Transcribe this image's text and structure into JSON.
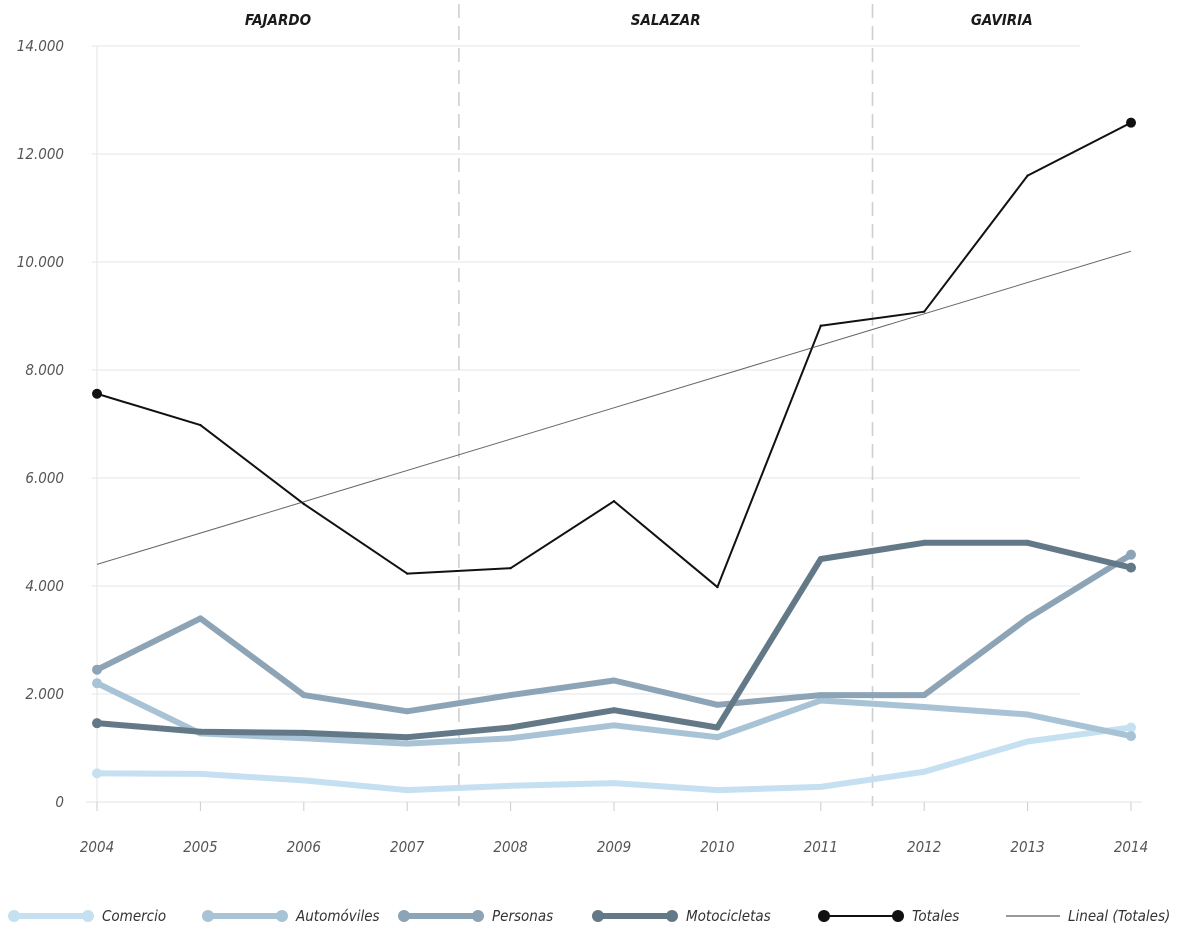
{
  "chart_data": {
    "type": "line",
    "x": [
      "2004",
      "2005",
      "2006",
      "2007",
      "2008",
      "2009",
      "2010",
      "2011",
      "2012",
      "2013",
      "2014"
    ],
    "y_ticks": [
      "0",
      "2.000",
      "4.000",
      "6.000",
      "8.000",
      "10.000",
      "12.000",
      "14.000"
    ],
    "ylim": [
      0,
      14000
    ],
    "grid": true,
    "legend_position": "bottom",
    "periods": [
      {
        "label": "FAJARDO",
        "from": 2004,
        "to": 2007.5
      },
      {
        "label": "SALAZAR",
        "from": 2007.5,
        "to": 2011.5
      },
      {
        "label": "GAVIRIA",
        "from": 2011.5,
        "to": 2014
      }
    ],
    "period_separators": [
      2007.5,
      2011.5
    ],
    "series": [
      {
        "name": "Comercio",
        "color": "#c5e0f0",
        "style": "thick",
        "values": [
          530,
          520,
          400,
          220,
          300,
          350,
          220,
          280,
          560,
          1120,
          1380
        ]
      },
      {
        "name": "Automóviles",
        "color": "#a8c3d6",
        "style": "thick",
        "values": [
          2200,
          1270,
          1180,
          1080,
          1180,
          1420,
          1200,
          1880,
          1760,
          1620,
          1220
        ]
      },
      {
        "name": "Personas",
        "color": "#8ca4b6",
        "style": "thick",
        "values": [
          2450,
          3400,
          1980,
          1680,
          1980,
          2250,
          1800,
          1980,
          1980,
          3400,
          4580
        ]
      },
      {
        "name": "Motocicletas",
        "color": "#637987",
        "style": "thick",
        "values": [
          1460,
          1300,
          1280,
          1200,
          1380,
          1700,
          1380,
          4500,
          4800,
          4800,
          4340
        ]
      },
      {
        "name": "Totales",
        "color": "#111111",
        "style": "thin-markers",
        "values": [
          7560,
          6980,
          5520,
          4230,
          4330,
          5570,
          3980,
          8820,
          9080,
          11600,
          12580
        ]
      },
      {
        "name": "Lineal (Totales)",
        "color": "#333333",
        "style": "trend",
        "values": [
          4400,
          4980,
          5560,
          6140,
          6720,
          7300,
          7880,
          8460,
          9040,
          9620,
          10200
        ]
      }
    ]
  }
}
